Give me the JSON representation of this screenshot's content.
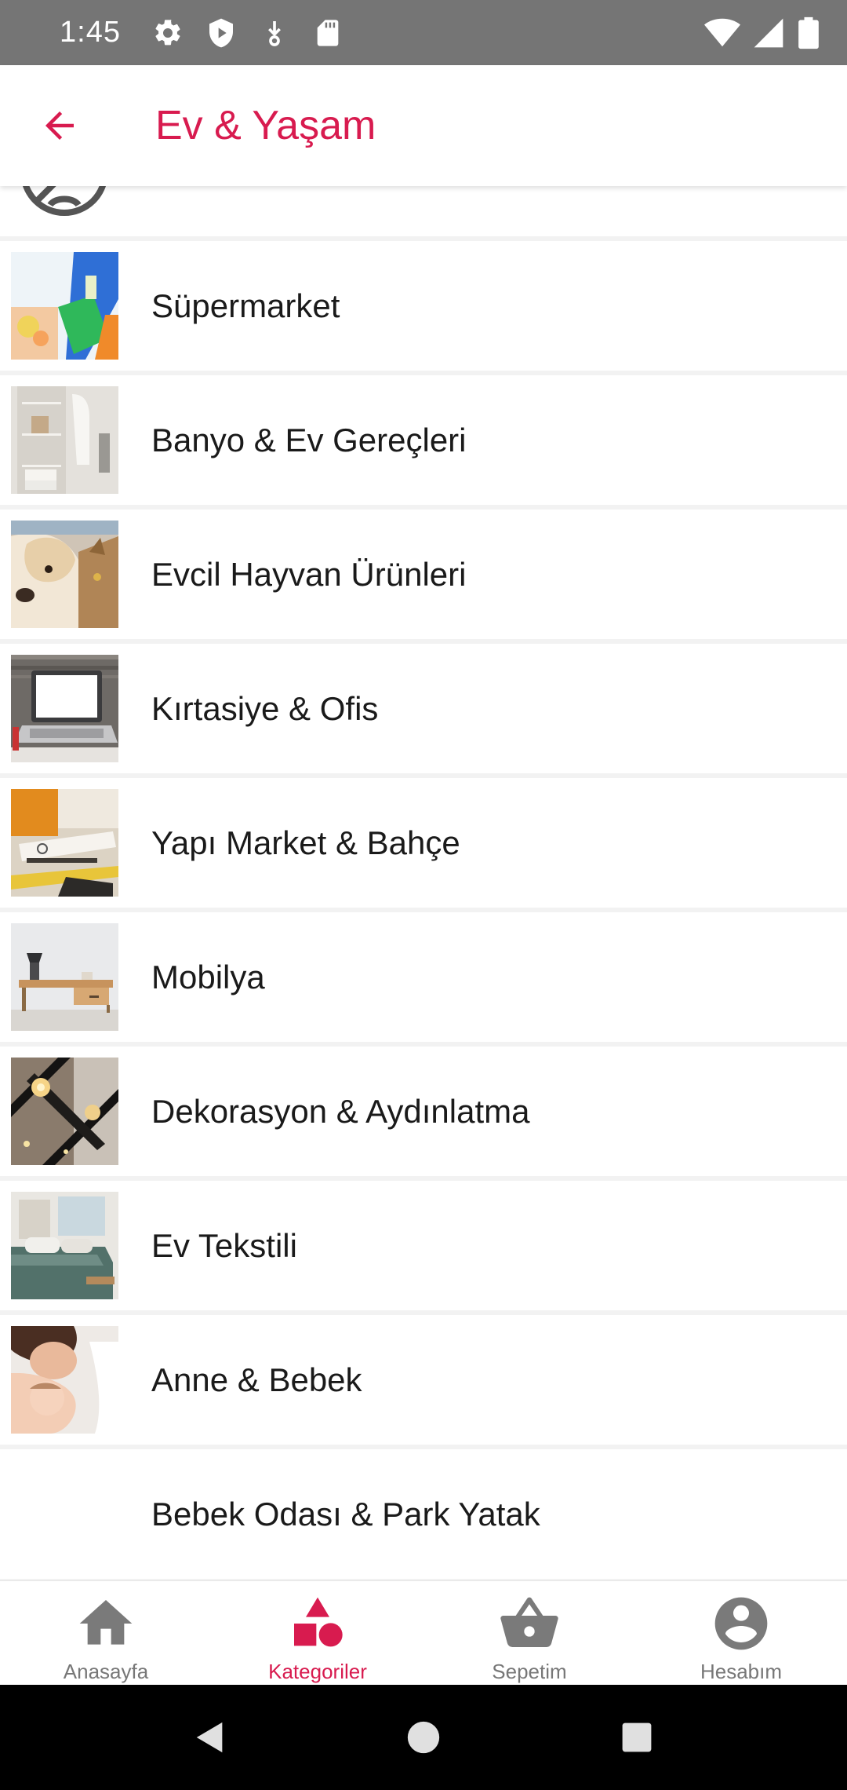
{
  "status_bar": {
    "time": "1:45",
    "left_icons": [
      "gear-icon",
      "shield-icon",
      "download-icon",
      "sd-card-icon"
    ],
    "right_icons": [
      "wifi-icon",
      "signal-icon",
      "battery-icon"
    ]
  },
  "header": {
    "title": "Ev & Yaşam",
    "back_icon": "arrow-back-icon",
    "accent_color": "#d81b4f"
  },
  "categories": [
    {
      "label": "Süpermarket",
      "image": "supermarket-thumbnail"
    },
    {
      "label": "Banyo & Ev Gereçleri",
      "image": "bathroom-thumbnail"
    },
    {
      "label": "Evcil Hayvan Ürünleri",
      "image": "pets-thumbnail"
    },
    {
      "label": "Kırtasiye & Ofis",
      "image": "laptop-thumbnail"
    },
    {
      "label": "Yapı Market & Bahçe",
      "image": "diy-thumbnail"
    },
    {
      "label": "Mobilya",
      "image": "furniture-thumbnail"
    },
    {
      "label": "Dekorasyon & Aydınlatma",
      "image": "lighting-thumbnail"
    },
    {
      "label": "Ev Tekstili",
      "image": "bedding-thumbnail"
    },
    {
      "label": "Anne & Bebek",
      "image": "mother-baby-thumbnail"
    },
    {
      "label": "Bebek Odası & Park Yatak",
      "image": ""
    }
  ],
  "bottom_nav": {
    "items": [
      {
        "label": "Anasayfa",
        "icon": "home-icon",
        "active": false
      },
      {
        "label": "Kategoriler",
        "icon": "categories-icon",
        "active": true
      },
      {
        "label": "Sepetim",
        "icon": "basket-icon",
        "active": false
      },
      {
        "label": "Hesabım",
        "icon": "account-icon",
        "active": false
      }
    ],
    "active_color": "#d81b4f",
    "inactive_color": "#777777"
  },
  "system_nav": [
    "back-triangle-icon",
    "home-circle-icon",
    "recents-square-icon"
  ]
}
